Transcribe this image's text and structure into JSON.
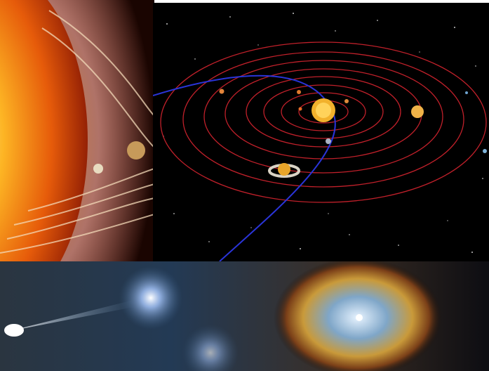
{
  "collage": {
    "background": "#ffffff",
    "panels": [
      {
        "subject": "sun-with-planet-orbits",
        "dominant_colors": [
          "#f6a21a",
          "#c62a05",
          "#1a0702"
        ]
      },
      {
        "subject": "solar-system-orbit-diagram",
        "dominant_colors": [
          "#000000",
          "#c0202a",
          "#2a34d8",
          "#f2b12c"
        ]
      },
      {
        "subject": "ring-nebula",
        "dominant_colors": [
          "#3a5f86",
          "#c99a3a",
          "#e7f3ff"
        ]
      }
    ]
  }
}
